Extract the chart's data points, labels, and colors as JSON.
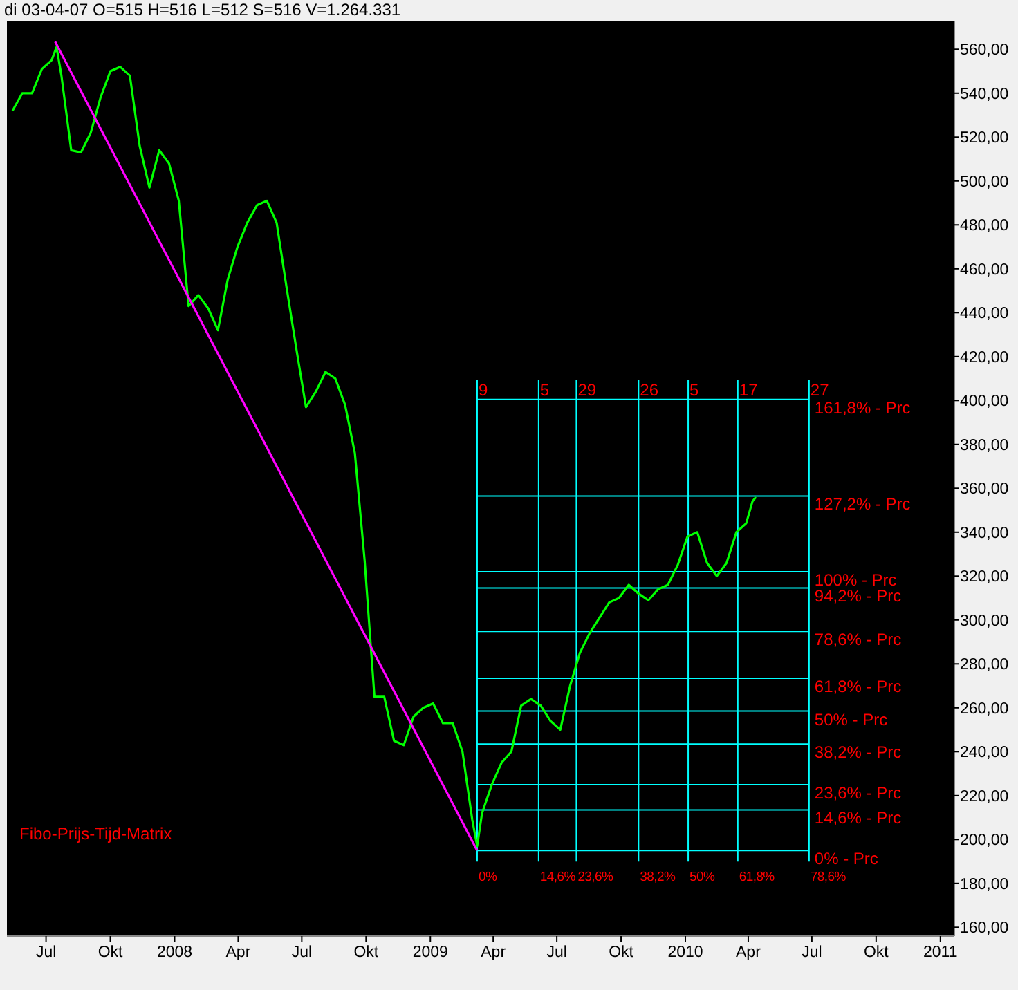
{
  "chart_data": {
    "type": "line",
    "annotations": [
      "di 03-04-07  O=515  H=516  L=512  S=516  V=1.264.331",
      "Fibo-Prijs-Tijd-Matrix",
      "0%",
      "14,6%",
      "23,6%",
      "38,2%",
      "50%",
      "61,8%",
      "78,6%"
    ],
    "xlim": [
      "2007-05-06",
      "2011-01-21"
    ],
    "xticks": [
      {
        "value": "2007-07-01",
        "label": "Jul"
      },
      {
        "value": "2007-10-01",
        "label": "Okt"
      },
      {
        "value": "2008-01-01",
        "label": "2008"
      },
      {
        "value": "2008-04-01",
        "label": "Apr"
      },
      {
        "value": "2008-07-01",
        "label": "Jul"
      },
      {
        "value": "2008-10-01",
        "label": "Okt"
      },
      {
        "value": "2009-01-01",
        "label": "2009"
      },
      {
        "value": "2009-04-01",
        "label": "Apr"
      },
      {
        "value": "2009-07-01",
        "label": "Jul"
      },
      {
        "value": "2009-10-01",
        "label": "Okt"
      },
      {
        "value": "2010-01-01",
        "label": "2010"
      },
      {
        "value": "2010-04-01",
        "label": "Apr"
      },
      {
        "value": "2010-07-01",
        "label": "Jul"
      },
      {
        "value": "2010-10-01",
        "label": "Okt"
      },
      {
        "value": "2011-01-01",
        "label": "2011"
      }
    ],
    "ylim": [
      156,
      573
    ],
    "yticks": [
      {
        "value": 160,
        "label": "160,00"
      },
      {
        "value": 180,
        "label": "180,00"
      },
      {
        "value": 200,
        "label": "200,00"
      },
      {
        "value": 220,
        "label": "220,00"
      },
      {
        "value": 240,
        "label": "240,00"
      },
      {
        "value": 260,
        "label": "260,00"
      },
      {
        "value": 280,
        "label": "280,00"
      },
      {
        "value": 300,
        "label": "300,00"
      },
      {
        "value": 320,
        "label": "320,00"
      },
      {
        "value": 340,
        "label": "340,00"
      },
      {
        "value": 360,
        "label": "360,00"
      },
      {
        "value": 380,
        "label": "380,00"
      },
      {
        "value": 400,
        "label": "400,00"
      },
      {
        "value": 420,
        "label": "420,00"
      },
      {
        "value": 440,
        "label": "440,00"
      },
      {
        "value": 460,
        "label": "460,00"
      },
      {
        "value": 480,
        "label": "480,00"
      },
      {
        "value": 500,
        "label": "500,00"
      },
      {
        "value": 520,
        "label": "520,00"
      },
      {
        "value": 540,
        "label": "540,00"
      },
      {
        "value": 560,
        "label": "560,00"
      }
    ],
    "grid": false,
    "series": [
      {
        "color": "#00ff00",
        "x": [
          "2007-05-14",
          "2007-05-28",
          "2007-06-11",
          "2007-06-25",
          "2007-07-09",
          "2007-07-16",
          "2007-07-23",
          "2007-08-06",
          "2007-08-20",
          "2007-09-03",
          "2007-09-17",
          "2007-10-01",
          "2007-10-15",
          "2007-10-29",
          "2007-11-12",
          "2007-11-26",
          "2007-12-10",
          "2007-12-24",
          "2008-01-07",
          "2008-01-21",
          "2008-02-04",
          "2008-02-18",
          "2008-03-03",
          "2008-03-17",
          "2008-03-31",
          "2008-04-14",
          "2008-04-28",
          "2008-05-12",
          "2008-05-26",
          "2008-06-09",
          "2008-06-23",
          "2008-07-07",
          "2008-07-21",
          "2008-08-04",
          "2008-08-18",
          "2008-09-01",
          "2008-09-15",
          "2008-09-29",
          "2008-10-13",
          "2008-10-27",
          "2008-11-10",
          "2008-11-24",
          "2008-12-08",
          "2008-12-22",
          "2009-01-05",
          "2009-01-19",
          "2009-02-02",
          "2009-02-16",
          "2009-03-02",
          "2009-03-09",
          "2009-03-16",
          "2009-03-30",
          "2009-04-13",
          "2009-04-27",
          "2009-05-11",
          "2009-05-25",
          "2009-06-08",
          "2009-06-22",
          "2009-07-06",
          "2009-07-20",
          "2009-08-03",
          "2009-08-17",
          "2009-08-31",
          "2009-09-14",
          "2009-09-28",
          "2009-10-12",
          "2009-10-26",
          "2009-11-09",
          "2009-11-23",
          "2009-12-07",
          "2009-12-21",
          "2010-01-04",
          "2010-01-18",
          "2010-02-01",
          "2010-02-15",
          "2010-03-01",
          "2010-03-15",
          "2010-03-29",
          "2010-04-07",
          "2010-04-12"
        ],
        "values": [
          532,
          540,
          540,
          551,
          555,
          561,
          548,
          514,
          513,
          522,
          538,
          550,
          552,
          548,
          516,
          497,
          514,
          508,
          491,
          443,
          448,
          442,
          432,
          455,
          470,
          481,
          489,
          491,
          481,
          452,
          424,
          397,
          404,
          413,
          410,
          398,
          376,
          327,
          265,
          265,
          245,
          243,
          256,
          260,
          262,
          253,
          253,
          240,
          209,
          197,
          212,
          225,
          235,
          240,
          261,
          264,
          261,
          254,
          250,
          270,
          285,
          294,
          301,
          308,
          310,
          316,
          312,
          309,
          314,
          316,
          325,
          338,
          340,
          326,
          320,
          326,
          340,
          344,
          354,
          356
        ]
      },
      {
        "color": "#ff00ff",
        "x": [
          "2007-07-14",
          "2009-03-09"
        ],
        "values": [
          563.5,
          195
        ]
      }
    ],
    "ref_lines": [
      {
        "axis": "y",
        "value": 400.5,
        "label": "161,8% - Prc",
        "color": "#00ffff"
      },
      {
        "axis": "y",
        "value": 356.5,
        "label": "127,2% - Prc",
        "color": "#00ffff"
      },
      {
        "axis": "y",
        "value": 322,
        "label": "100% - Prc",
        "color": "#00ffff"
      },
      {
        "axis": "y",
        "value": 314.6,
        "label": "94,2% - Prc",
        "color": "#00ffff"
      },
      {
        "axis": "y",
        "value": 294.8,
        "label": "78,6% - Prc",
        "color": "#00ffff"
      },
      {
        "axis": "y",
        "value": 273.5,
        "label": "61,8% - Prc",
        "color": "#00ffff"
      },
      {
        "axis": "y",
        "value": 258.5,
        "label": "50% - Prc",
        "color": "#00ffff"
      },
      {
        "axis": "y",
        "value": 243.5,
        "label": "38,2% - Prc",
        "color": "#00ffff"
      },
      {
        "axis": "y",
        "value": 225,
        "label": "23,6% - Prc",
        "color": "#00ffff"
      },
      {
        "axis": "y",
        "value": 213.5,
        "label": "14,6% - Prc",
        "color": "#00ffff"
      },
      {
        "axis": "y",
        "value": 195,
        "label": "0% - Prc",
        "color": "#00ffff"
      },
      {
        "axis": "x",
        "value": "2009-03-09",
        "label": "9",
        "color": "#00ffff"
      },
      {
        "axis": "x",
        "value": "2009-06-05",
        "label": "5",
        "color": "#00ffff"
      },
      {
        "axis": "x",
        "value": "2009-07-29",
        "label": "29",
        "color": "#00ffff"
      },
      {
        "axis": "x",
        "value": "2009-10-26",
        "label": "26",
        "color": "#00ffff"
      },
      {
        "axis": "x",
        "value": "2010-01-05",
        "label": "5",
        "color": "#00ffff"
      },
      {
        "axis": "x",
        "value": "2010-03-17",
        "label": "17",
        "color": "#00ffff"
      },
      {
        "axis": "x",
        "value": "2010-06-27",
        "label": "27",
        "color": "#00ffff"
      }
    ]
  }
}
